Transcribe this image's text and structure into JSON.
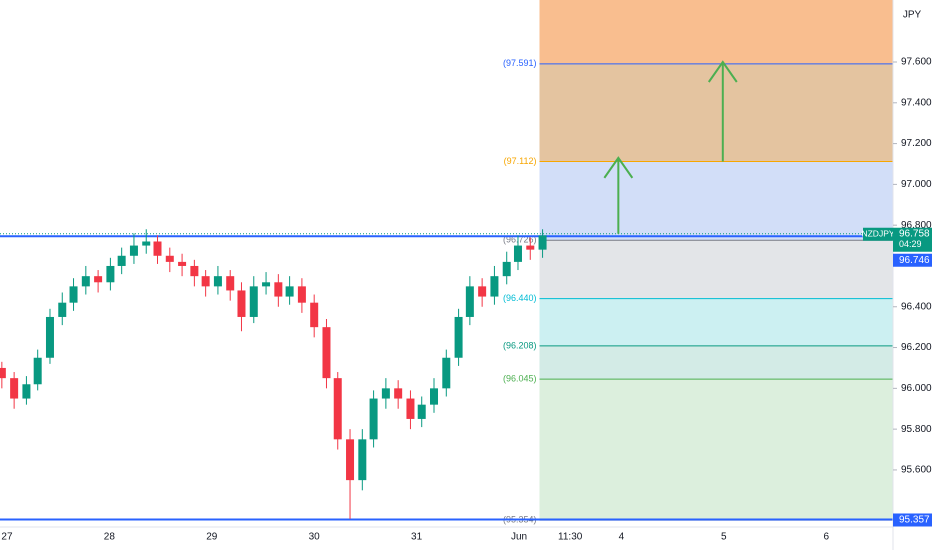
{
  "chart_data": {
    "type": "candlestick",
    "symbol": "NZDJPY",
    "currency": "JPY",
    "countdown": "04:29",
    "up_color": "#089981",
    "down_color": "#f23645",
    "xlim": [
      -0.068,
      8.652
    ],
    "ylim": [
      95.33,
      97.904
    ],
    "xticks": [
      {
        "value": 0,
        "label": "27"
      },
      {
        "value": 1,
        "label": "28"
      },
      {
        "value": 2,
        "label": "29"
      },
      {
        "value": 3,
        "label": "30"
      },
      {
        "value": 4,
        "label": "31"
      },
      {
        "value": 5,
        "label": "Jun"
      },
      {
        "value": 5.5,
        "label": "11:30"
      },
      {
        "value": 6,
        "label": "4"
      },
      {
        "value": 7,
        "label": "5"
      },
      {
        "value": 8,
        "label": "6"
      }
    ],
    "yticks": [
      {
        "value": 97.6,
        "label": "97.600"
      },
      {
        "value": 97.4,
        "label": "97.400"
      },
      {
        "value": 97.2,
        "label": "97.200"
      },
      {
        "value": 97.0,
        "label": "97.000"
      },
      {
        "value": 96.8,
        "label": "96.800"
      },
      {
        "value": 96.4,
        "label": "96.400"
      },
      {
        "value": 96.2,
        "label": "96.200"
      },
      {
        "value": 96.0,
        "label": "96.000"
      },
      {
        "value": 95.8,
        "label": "95.800"
      },
      {
        "value": 95.6,
        "label": "95.600"
      }
    ],
    "candles": [
      [
        -0.05,
        96.1,
        96.13,
        96.0,
        96.05
      ],
      [
        0.07,
        96.05,
        96.08,
        95.9,
        95.95
      ],
      [
        0.19,
        95.95,
        96.06,
        95.92,
        96.02
      ],
      [
        0.3,
        96.02,
        96.19,
        95.99,
        96.15
      ],
      [
        0.42,
        96.15,
        96.39,
        96.12,
        96.35
      ],
      [
        0.54,
        96.35,
        96.47,
        96.31,
        96.42
      ],
      [
        0.65,
        96.42,
        96.54,
        96.38,
        96.5
      ],
      [
        0.77,
        96.5,
        96.6,
        96.46,
        96.55
      ],
      [
        0.89,
        96.55,
        96.58,
        96.47,
        96.52
      ],
      [
        1.01,
        96.52,
        96.64,
        96.48,
        96.6
      ],
      [
        1.12,
        96.6,
        96.69,
        96.56,
        96.65
      ],
      [
        1.24,
        96.65,
        96.76,
        96.61,
        96.7
      ],
      [
        1.36,
        96.7,
        96.78,
        96.66,
        96.72
      ],
      [
        1.47,
        96.72,
        96.75,
        96.61,
        96.65
      ],
      [
        1.59,
        96.65,
        96.69,
        96.57,
        96.62
      ],
      [
        1.71,
        96.62,
        96.66,
        96.55,
        96.6
      ],
      [
        1.83,
        96.6,
        96.63,
        96.5,
        96.55
      ],
      [
        1.94,
        96.55,
        96.58,
        96.45,
        96.5
      ],
      [
        2.06,
        96.5,
        96.6,
        96.46,
        96.55
      ],
      [
        2.18,
        96.55,
        96.58,
        96.43,
        96.48
      ],
      [
        2.29,
        96.48,
        96.52,
        96.28,
        96.35
      ],
      [
        2.41,
        96.35,
        96.55,
        96.32,
        96.5
      ],
      [
        2.53,
        96.5,
        96.57,
        96.46,
        96.52
      ],
      [
        2.65,
        96.52,
        96.56,
        96.4,
        96.45
      ],
      [
        2.76,
        96.45,
        96.55,
        96.41,
        96.5
      ],
      [
        2.88,
        96.5,
        96.54,
        96.37,
        96.42
      ],
      [
        3.0,
        96.42,
        96.46,
        96.25,
        96.3
      ],
      [
        3.12,
        96.3,
        96.34,
        96.0,
        96.05
      ],
      [
        3.23,
        96.05,
        96.08,
        95.7,
        95.75
      ],
      [
        3.35,
        95.75,
        95.8,
        95.36,
        95.55
      ],
      [
        3.47,
        95.55,
        95.8,
        95.5,
        95.75
      ],
      [
        3.58,
        95.75,
        95.99,
        95.71,
        95.95
      ],
      [
        3.7,
        95.95,
        96.05,
        95.9,
        96.0
      ],
      [
        3.82,
        96.0,
        96.04,
        95.9,
        95.95
      ],
      [
        3.94,
        95.95,
        95.99,
        95.8,
        95.85
      ],
      [
        4.05,
        95.85,
        95.96,
        95.81,
        95.92
      ],
      [
        4.17,
        95.92,
        96.05,
        95.88,
        96.0
      ],
      [
        4.29,
        96.0,
        96.19,
        95.96,
        96.15
      ],
      [
        4.41,
        96.15,
        96.39,
        96.11,
        96.35
      ],
      [
        4.52,
        96.35,
        96.55,
        96.31,
        96.5
      ],
      [
        4.64,
        96.5,
        96.54,
        96.4,
        96.45
      ],
      [
        4.76,
        96.45,
        96.6,
        96.41,
        96.55
      ],
      [
        4.88,
        96.55,
        96.67,
        96.51,
        96.62
      ],
      [
        4.99,
        96.62,
        96.75,
        96.58,
        96.7
      ],
      [
        5.11,
        96.7,
        96.74,
        96.63,
        96.68
      ],
      [
        5.23,
        96.68,
        96.78,
        96.64,
        96.75
      ]
    ],
    "last": {
      "value": 96.758,
      "label": "96.758"
    },
    "hlines": [
      {
        "value": 96.746,
        "label": "96.746"
      },
      {
        "value": 95.357,
        "label": "95.357"
      }
    ],
    "hline_color": "#2962ff",
    "levels_start": 5.2,
    "levels": [
      {
        "value": 97.591,
        "label": "(97.591)",
        "color": "#2962ff",
        "fill": "#f9be8f"
      },
      {
        "value": 97.112,
        "label": "(97.112)",
        "color": "#f7a600",
        "fill": "#e4c4a0"
      },
      {
        "value": 96.726,
        "label": "(96.726)",
        "color": "#787b86",
        "fill": "#d2def8"
      },
      {
        "value": 96.44,
        "label": "(96.440)",
        "color": "#00bcd4",
        "fill": "#e3e5e8"
      },
      {
        "value": 96.208,
        "label": "(96.208)",
        "color": "#089981",
        "fill": "#ccf0f2"
      },
      {
        "value": 96.045,
        "label": "(96.045)",
        "color": "#4caf50",
        "fill": "#d3ebe6"
      },
      {
        "value": 95.354,
        "label": "(95.354)",
        "color": "#787b86",
        "fill": "#dcefdd"
      }
    ],
    "arrows": [
      {
        "x": 5.97,
        "from": 96.758,
        "to": 97.13
      },
      {
        "x": 6.99,
        "from": 97.112,
        "to": 97.6
      }
    ],
    "arrow_color": "#4caf50"
  }
}
